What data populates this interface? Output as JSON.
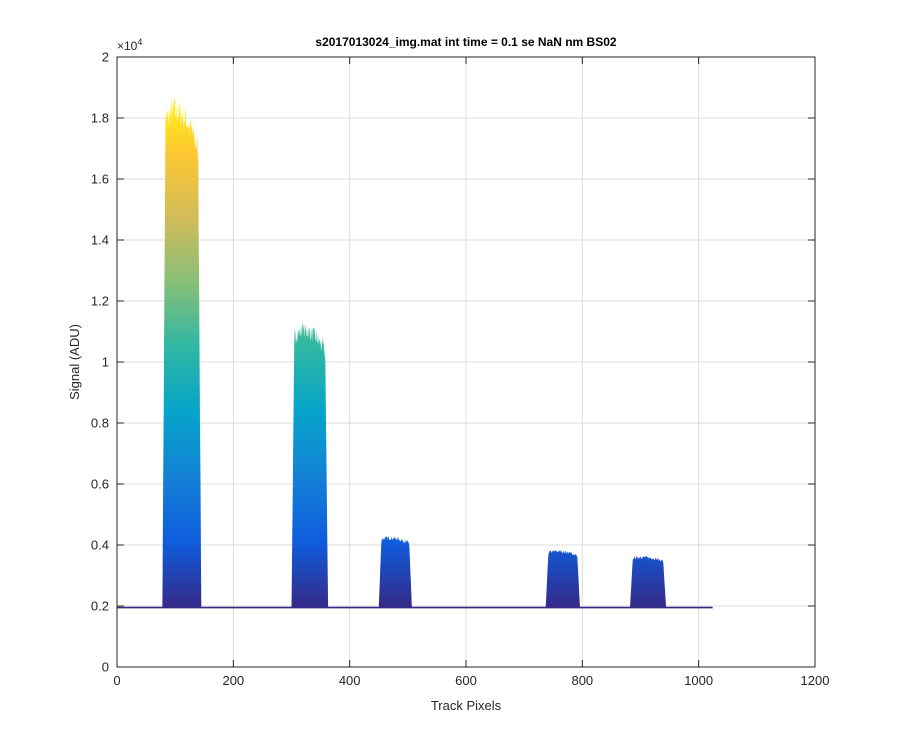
{
  "chart_data": {
    "type": "area",
    "title": "s2017013024_img.mat int time = 0.1 se  NaN nm BS02",
    "xlabel": "Track Pixels",
    "ylabel": "Signal (ADU)",
    "y_exponent_label": "×10",
    "y_exponent_power": "4",
    "xlim": [
      0,
      1200
    ],
    "ylim": [
      0,
      20000
    ],
    "xticks": [
      "0",
      "200",
      "400",
      "600",
      "800",
      "1000",
      "1200"
    ],
    "yticks": [
      "0",
      "0.2",
      "0.4",
      "0.6",
      "0.8",
      "1",
      "1.2",
      "1.4",
      "1.6",
      "1.8",
      "2"
    ],
    "ytick_values": [
      0,
      2000,
      4000,
      6000,
      8000,
      10000,
      12000,
      14000,
      16000,
      18000,
      20000
    ],
    "grid": true,
    "baseline": 1950,
    "x_extent": [
      0,
      1024
    ],
    "peaks": [
      {
        "x_start": 78,
        "x_end": 145,
        "max": 18700
      },
      {
        "x_start": 300,
        "x_end": 363,
        "max": 11300
      },
      {
        "x_start": 450,
        "x_end": 507,
        "max": 4300
      },
      {
        "x_start": 737,
        "x_end": 796,
        "max": 3850
      },
      {
        "x_start": 882,
        "x_end": 944,
        "max": 3650
      }
    ],
    "colormap": [
      "#352a87",
      "#0f5cdd",
      "#1481d6",
      "#06a4ca",
      "#2eb7a4",
      "#87bf77",
      "#d1bb59",
      "#fec832",
      "#f9fb0e"
    ]
  }
}
